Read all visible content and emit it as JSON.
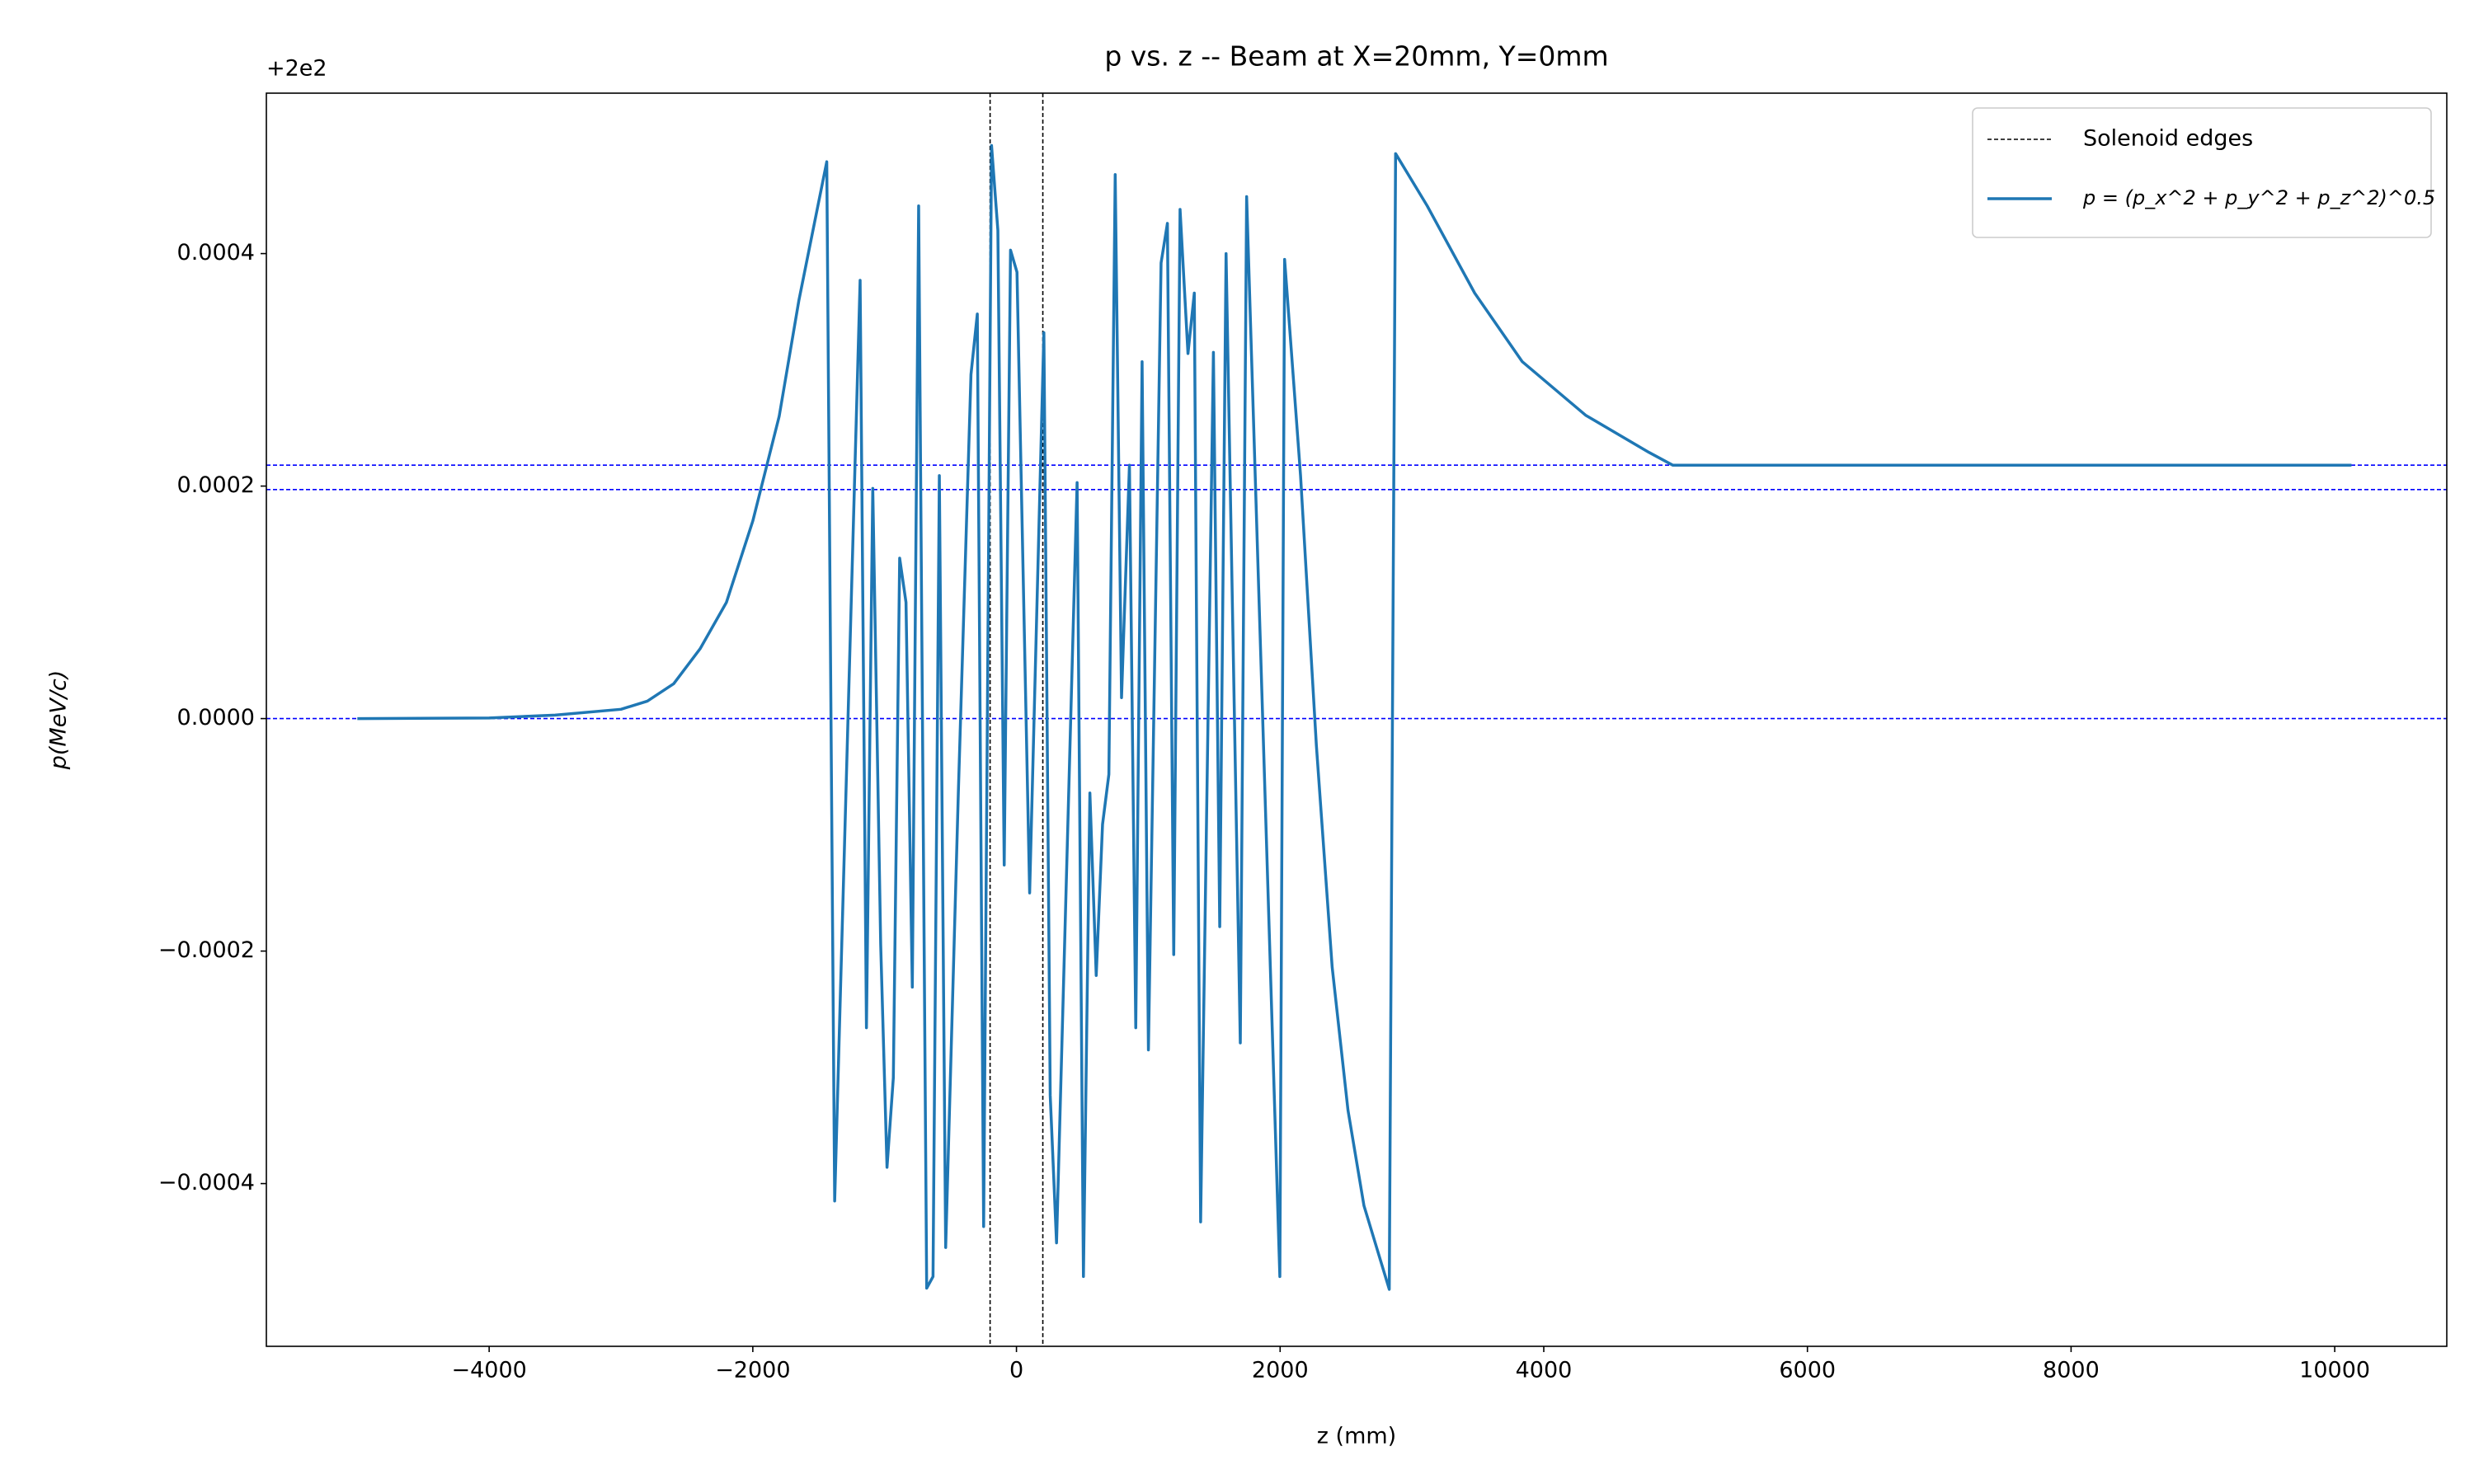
{
  "chart_data": {
    "type": "line",
    "title": "p vs. z -- Beam at X=20mm, Y=0mm",
    "offset_text": "+2e2",
    "x_label": "z (mm)",
    "y_label": "p(MeV/c)",
    "xlim": [
      -5690,
      10850
    ],
    "ylim": [
      -0.00054,
      0.000538
    ],
    "xticks": [
      {
        "value": -4000,
        "label": "−4000"
      },
      {
        "value": -2000,
        "label": "−2000"
      },
      0,
      2000,
      4000,
      6000,
      8000,
      10000
    ],
    "yticks": [
      {
        "value": -0.0004,
        "label": "−0.0004"
      },
      {
        "value": -0.0002,
        "label": "−0.0002"
      },
      {
        "value": 0,
        "label": "0.0000"
      },
      0.0002,
      0.0004
    ],
    "grid": false,
    "legend": "upper right",
    "vlines": {
      "name": "Solenoid edges",
      "color": "#000000",
      "values": [
        -200,
        200
      ]
    },
    "hlines": {
      "color": "#0000ff",
      "values": [
        0,
        0.000197,
        0.000218
      ]
    },
    "x": [
      -5000,
      -4000,
      -3500,
      -3000,
      -2800,
      -2600,
      -2400,
      -2200,
      -2000,
      -1800,
      -1650,
      -1439,
      -1379,
      -1186,
      -1138,
      -1090,
      -1030,
      -982,
      -934,
      -886,
      -838,
      -790,
      -742,
      -681,
      -633,
      -585,
      -537,
      -441,
      -345,
      -297,
      -249,
      -189,
      -141,
      -93,
      -45,
      4,
      100,
      208,
      256,
      304,
      460,
      508,
      557,
      605,
      653,
      701,
      749,
      797,
      857,
      905,
      953,
      1001,
      1097,
      1145,
      1193,
      1241,
      1301,
      1349,
      1397,
      1494,
      1542,
      1590,
      1698,
      1746,
      1998,
      2034,
      2155,
      2275,
      2395,
      2515,
      2636,
      2828,
      2876,
      3116,
      3476,
      3837,
      4317,
      4798,
      4978,
      10127
    ],
    "series": [
      {
        "name": "p = (p_x^2 + p_y^2 + p_z^2)^0.5",
        "color": "#1f77b4",
        "values": [
          0,
          5e-07,
          3e-06,
          8e-06,
          1.5e-05,
          3e-05,
          6e-05,
          0.0001,
          0.00017,
          0.00026,
          0.00036,
          0.000479,
          -0.000415,
          0.000377,
          -0.000266,
          0.000198,
          -0.000194,
          -0.000386,
          -0.000309,
          0.000138,
          0.0001,
          -0.000231,
          0.000441,
          -0.00049,
          -0.00048,
          0.000209,
          -0.000455,
          -6.4e-05,
          0.000296,
          0.000348,
          -0.000437,
          0.000493,
          0.00042,
          -0.000126,
          0.000403,
          0.000384,
          -0.00015,
          0.000332,
          -0.000324,
          -0.000451,
          0.000203,
          -0.00048,
          -6.4e-05,
          -0.000221,
          -9.1e-05,
          -4.8e-05,
          0.000468,
          1.8e-05,
          0.000218,
          -0.000266,
          0.000307,
          -0.000285,
          0.000392,
          0.000426,
          -0.000203,
          0.000438,
          0.000314,
          0.000366,
          -0.000433,
          0.000315,
          -0.000179,
          0.0004,
          -0.000279,
          0.000449,
          -0.00048,
          0.000395,
          0.000209,
          -2.3e-05,
          -0.000214,
          -0.000337,
          -0.000419,
          -0.000491,
          0.000486,
          0.000441,
          0.000366,
          0.000307,
          0.000261,
          0.000229,
          0.000218,
          0.000218
        ]
      }
    ]
  }
}
